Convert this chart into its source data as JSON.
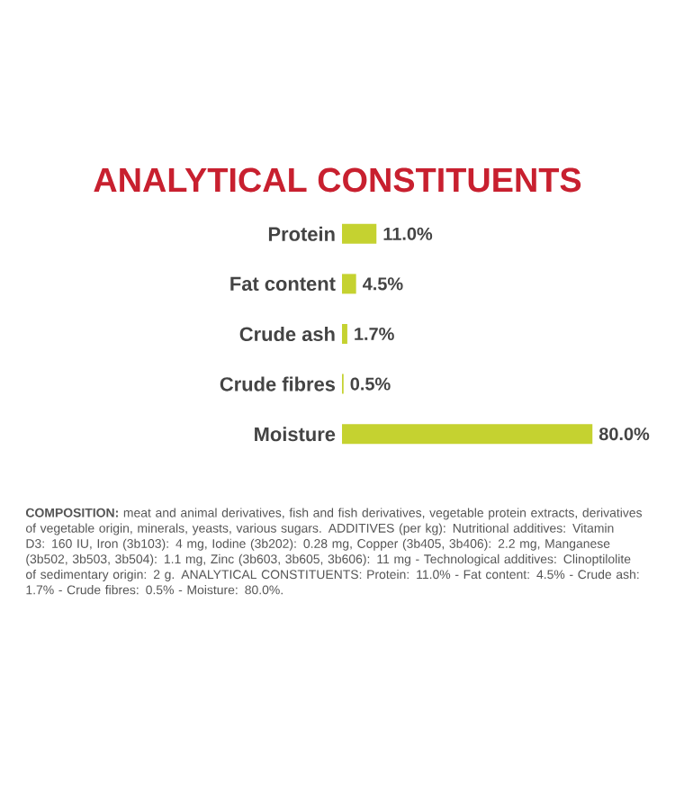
{
  "chart_data": {
    "type": "bar",
    "orientation": "horizontal",
    "title": "ANALYTICAL CONSTITUENTS",
    "categories": [
      "Protein",
      "Fat content",
      "Crude ash",
      "Crude fibres",
      "Moisture"
    ],
    "values": [
      11.0,
      4.5,
      1.7,
      0.5,
      80.0
    ],
    "value_labels": [
      "11.0%",
      "4.5%",
      "1.7%",
      "0.5%",
      "80.0%"
    ],
    "color": "#c5d230",
    "annotations": [
      "**COMPOSITION:** meat and animal derivatives, fish and fish derivatives, vegetable protein extracts, derivatives of vegetable origin, minerals, yeasts, various sugars. ADDITIVES (per kg): Nutritional additives: Vitamin D3: 160 IU, Iron (3b103): 4 mg, Iodine (3b202): 0.28 mg, Copper (3b405, 3b406): 2.2 mg, Manganese (3b502, 3b503, 3b504): 1.1 mg, Zinc (3b603, 3b605, 3b606): 11 mg - Technological additives: Clinoptilolite of sedimentary origin: 2 g. ANALYTICAL CONSTITUENTS: Protein: 11.0% - Fat content: 4.5% - Crude ash: 1.7% - Crude fibres: 0.5% - Moisture: 80.0%."
    ]
  }
}
